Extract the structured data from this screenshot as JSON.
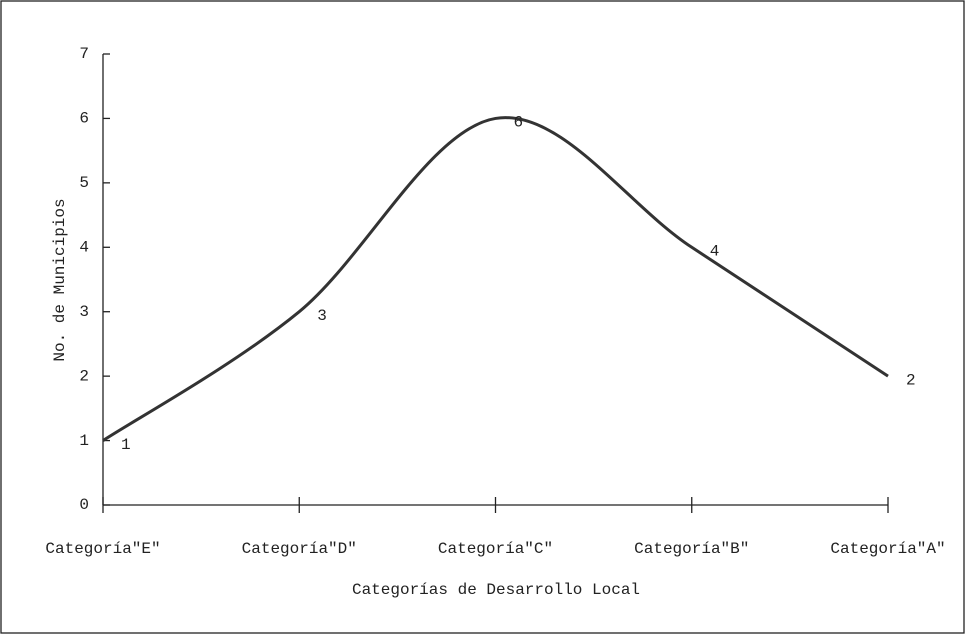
{
  "chart_data": {
    "type": "line",
    "xlabel": "Categorías de Desarrollo Local",
    "ylabel": "No. de Municipios",
    "categories": [
      "Categoría\"E\"",
      "Categoría\"D\"",
      "Categoría\"C\"",
      "Categoría\"B\"",
      "Categoría\"A\""
    ],
    "values": [
      1,
      3,
      6,
      4,
      2
    ],
    "color": "#333333",
    "smooth": true,
    "ylim": [
      0,
      7
    ],
    "yticks": [
      0,
      1,
      2,
      3,
      4,
      5,
      6,
      7
    ]
  }
}
